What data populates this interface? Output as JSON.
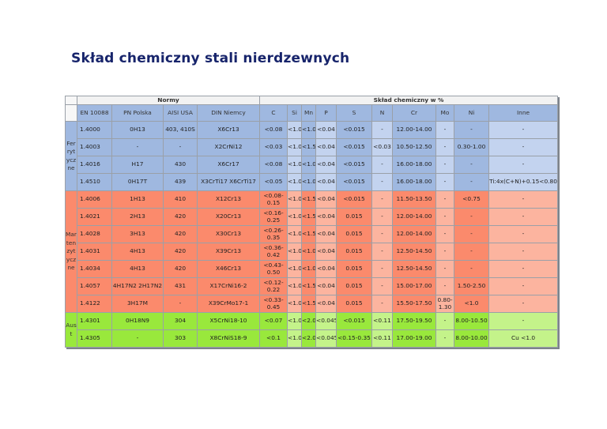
{
  "title": "Skład chemiczny stali nierdzewnych",
  "groups": {
    "norms": "Normy",
    "composition": "Skład chemiczny w %"
  },
  "columns": [
    "EN 10088",
    "PN Polska",
    "AISI USA",
    "DIN Niemcy",
    "C",
    "Si",
    "Mn",
    "P",
    "S",
    "N",
    "Cr",
    "Mo",
    "Ni",
    "Inne"
  ],
  "categories": [
    {
      "label": "Ferrytyczne",
      "class": "f"
    },
    {
      "label": "Martenzytyczne",
      "class": "m"
    },
    {
      "label": "Aust",
      "class": "a"
    }
  ],
  "rows": [
    {
      "cat": 0,
      "cells": [
        "1.4000",
        "0H13",
        "403, 410S",
        "X6Cr13",
        "<0.08",
        "<1.0",
        "<1.0",
        "<0.04",
        "<0.015",
        "-",
        "12.00-14.00",
        "-",
        "-",
        "-"
      ]
    },
    {
      "cat": 0,
      "cells": [
        "1.4003",
        "-",
        "-",
        "X2CrNi12",
        "<0.03",
        "<1.0",
        "<1.5",
        "<0.04",
        "<0.015",
        "<0.03",
        "10.50-12.50",
        "-",
        "0.30-1.00",
        "-"
      ]
    },
    {
      "cat": 0,
      "cells": [
        "1.4016",
        "H17",
        "430",
        "X6Cr17",
        "<0.08",
        "<1.0",
        "<1.0",
        "<0.04",
        "<0.015",
        "-",
        "16.00-18.00",
        "-",
        "-",
        "-"
      ]
    },
    {
      "cat": 0,
      "cells": [
        "1.4510",
        "0H17T",
        "439",
        "X3CrTi17 X6CrTi17",
        "<0.05",
        "<1.0",
        "<1.0",
        "<0.04",
        "<0.015",
        "-",
        "16.00-18.00",
        "-",
        "-",
        "Ti:4x(C+N)+0.15<0.80"
      ]
    },
    {
      "cat": 1,
      "cells": [
        "1.4006",
        "1H13",
        "410",
        "X12Cr13",
        "<0.08-0.15",
        "<1.0",
        "<1.5",
        "<0.04",
        "<0.015",
        "-",
        "11.50-13.50",
        "-",
        "<0.75",
        "-"
      ]
    },
    {
      "cat": 1,
      "cells": [
        "1.4021",
        "2H13",
        "420",
        "X20Cr13",
        "<0.16-0.25",
        "<1.0",
        "<1.5",
        "<0.04",
        "0.015",
        "-",
        "12.00-14.00",
        "-",
        "-",
        "-"
      ]
    },
    {
      "cat": 1,
      "cells": [
        "1.4028",
        "3H13",
        "420",
        "X30Cr13",
        "<0.26-0.35",
        "<1.0",
        "<1.5",
        "<0.04",
        "0.015",
        "-",
        "12.00-14.00",
        "-",
        "-",
        "-"
      ]
    },
    {
      "cat": 1,
      "cells": [
        "1.4031",
        "4H13",
        "420",
        "X39Cr13",
        "<0.36-0.42",
        "<1.0",
        "<1.0",
        "<0.04",
        "0.015",
        "-",
        "12.50-14.50",
        "-",
        "-",
        "-"
      ]
    },
    {
      "cat": 1,
      "cells": [
        "1.4034",
        "4H13",
        "420",
        "X46Cr13",
        "<0.43-0.50",
        "<1.0",
        "<1.0",
        "<0.04",
        "0.015",
        "-",
        "12.50-14.50",
        "-",
        "-",
        "-"
      ]
    },
    {
      "cat": 1,
      "cells": [
        "1.4057",
        "4H17N2 2H17N2",
        "431",
        "X17CrNi16-2",
        "<0.12-0.22",
        "<1.0",
        "<1.5",
        "<0.04",
        "0.015",
        "-",
        "15.00-17.00",
        "-",
        "1.50-2.50",
        "-"
      ]
    },
    {
      "cat": 1,
      "cells": [
        "1.4122",
        "3H17M",
        "-",
        "X39CrMo17-1",
        "<0.33-0.45",
        "<1.0",
        "<1.5",
        "<0.04",
        "0.015",
        "-",
        "15.50-17.50",
        "0.80-1.30",
        "<1.0",
        "-"
      ]
    },
    {
      "cat": 2,
      "cells": [
        "1.4301",
        "0H18N9",
        "304",
        "X5CrNi18-10",
        "<0.07",
        "<1.0",
        "<2.0",
        "<0.045",
        "<0.015",
        "<0.11",
        "17.50-19.50",
        "-",
        "8.00-10.50",
        "-"
      ]
    },
    {
      "cat": 2,
      "cells": [
        "1.4305",
        "-",
        "303",
        "X8CrNiS18-9",
        "<0.1",
        "<1.0",
        "<2.0",
        "<0.045",
        "<0.15-0.35",
        "<0.11",
        "17.00-19.00",
        "-",
        "8.00-10.00",
        "Cu <1.0"
      ]
    }
  ]
}
